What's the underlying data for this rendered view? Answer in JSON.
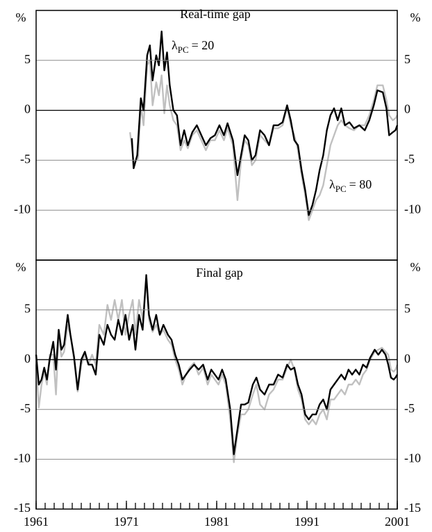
{
  "chart_data": [
    {
      "type": "line",
      "title": "Real-time gap",
      "y_unit": "%",
      "annotations": [
        {
          "symbol": "λ",
          "subscript": "PC",
          "text": "= 20"
        },
        {
          "symbol": "λ",
          "subscript": "PC",
          "text": "= 80"
        }
      ],
      "xlim": [
        1961,
        2001
      ],
      "ylim": [
        -15,
        10
      ],
      "yticks": [
        5,
        0,
        -5,
        -10
      ],
      "grid": true,
      "series": [
        {
          "color": "#000000",
          "x": [
            1971.6,
            1971.8,
            1972.2,
            1972.6,
            1972.9,
            1973.3,
            1973.6,
            1973.9,
            1974.3,
            1974.6,
            1974.9,
            1975.2,
            1975.5,
            1975.8,
            1976.2,
            1976.6,
            1977.0,
            1977.4,
            1977.8,
            1978.3,
            1978.8,
            1979.3,
            1979.8,
            1980.3,
            1980.8,
            1981.3,
            1981.8,
            1982.2,
            1982.8,
            1983.3,
            1983.7,
            1984.1,
            1984.5,
            1984.9,
            1985.3,
            1985.8,
            1986.3,
            1986.8,
            1987.3,
            1987.8,
            1988.3,
            1988.8,
            1989.2,
            1989.6,
            1990.0,
            1990.4,
            1990.8,
            1991.2,
            1991.6,
            1992.0,
            1992.4,
            1992.8,
            1993.2,
            1993.6,
            1994.0,
            1994.4,
            1994.8,
            1995.2,
            1995.7,
            1996.2,
            1996.8,
            1997.4,
            1997.9,
            1998.4,
            1998.8,
            1999.4,
            1999.8,
            2000.1,
            2000.5,
            2000.8,
            2001.0
          ],
          "values": [
            -2.8,
            -5.8,
            -4.5,
            1.2,
            0,
            5.5,
            6.5,
            3,
            5.5,
            4.5,
            7.9,
            4,
            5.8,
            2.5,
            0,
            -0.5,
            -3.5,
            -2.0,
            -3.5,
            -2.2,
            -1.5,
            -2.5,
            -3.5,
            -2.8,
            -2.5,
            -1.5,
            -2.5,
            -1.3,
            -3,
            -6.5,
            -4.5,
            -2.5,
            -3.0,
            -5,
            -4.5,
            -2,
            -2.5,
            -3.5,
            -1.5,
            -1.5,
            -1.2,
            0.5,
            -1.0,
            -3.0,
            -3.5,
            -6,
            -8,
            -10.5,
            -9.5,
            -8,
            -6,
            -4.5,
            -2,
            -0.5,
            0.2,
            -1.0,
            0.2,
            -1.5,
            -1.2,
            -1.8,
            -1.5,
            -2,
            -1.0,
            0.5,
            2.0,
            1.8,
            0.2,
            -2.5,
            -2.2,
            -2.0,
            -1.5
          ]
        },
        {
          "color": "#c0c0c0",
          "x": [
            1971.4,
            1971.8,
            1972.3,
            1972.6,
            1972.9,
            1973.3,
            1973.6,
            1973.9,
            1974.3,
            1974.6,
            1974.9,
            1975.2,
            1975.5,
            1975.8,
            1976.2,
            1976.6,
            1977.0,
            1977.4,
            1977.8,
            1978.3,
            1978.8,
            1979.3,
            1979.8,
            1980.3,
            1980.8,
            1981.3,
            1981.8,
            1982.2,
            1982.8,
            1983.3,
            1983.7,
            1984.1,
            1984.5,
            1984.9,
            1985.3,
            1985.8,
            1986.3,
            1986.8,
            1987.3,
            1987.8,
            1988.3,
            1988.8,
            1989.2,
            1989.6,
            1990.0,
            1990.4,
            1990.8,
            1991.2,
            1991.6,
            1992.0,
            1992.4,
            1992.8,
            1993.2,
            1993.6,
            1994.0,
            1994.4,
            1994.8,
            1995.2,
            1995.7,
            1996.2,
            1996.8,
            1997.4,
            1997.9,
            1998.4,
            1998.8,
            1999.4,
            1999.8,
            2000.1,
            2000.5,
            2000.8,
            2001.0
          ],
          "values": [
            -2.2,
            -5.2,
            -4.8,
            0.5,
            -1.5,
            4.5,
            5.0,
            0.5,
            2.8,
            1.5,
            3.5,
            -0.3,
            2.5,
            0.5,
            -1.0,
            -1.5,
            -4,
            -3,
            -3.8,
            -2.5,
            -2.0,
            -3,
            -4,
            -3,
            -3,
            -2.0,
            -3,
            -1.8,
            -3.5,
            -9,
            -5,
            -3,
            -3.5,
            -5.5,
            -5.0,
            -2.5,
            -3,
            -3.5,
            -1.8,
            -1.8,
            -1.5,
            0.3,
            -1.5,
            -2.5,
            -4,
            -6.5,
            -8.5,
            -11,
            -10,
            -9,
            -8.5,
            -7.5,
            -5.5,
            -3.5,
            -2.5,
            -1.5,
            -1.0,
            -1.5,
            -1.8,
            -2.0,
            -1.5,
            -1.5,
            -0.5,
            1.0,
            2.5,
            2.5,
            1.0,
            -0.5,
            -1.0,
            -0.8,
            -0.5
          ]
        }
      ]
    },
    {
      "type": "line",
      "title": "Final gap",
      "y_unit": "%",
      "xlim": [
        1961,
        2001
      ],
      "xticks": [
        1961,
        1971,
        1981,
        1991,
        2001
      ],
      "minor_xtick_step": 1,
      "ylim": [
        -15,
        10
      ],
      "yticks": [
        5,
        0,
        -5,
        -10,
        -15
      ],
      "grid": true,
      "series": [
        {
          "color": "#000000",
          "x": [
            1961,
            1961.3,
            1961.6,
            1961.9,
            1962.2,
            1962.5,
            1962.9,
            1963.2,
            1963.5,
            1963.8,
            1964.1,
            1964.5,
            1964.8,
            1965.2,
            1965.6,
            1966.0,
            1966.4,
            1966.8,
            1967.2,
            1967.6,
            1968.0,
            1968.5,
            1968.9,
            1969.3,
            1969.7,
            1970.1,
            1970.5,
            1970.9,
            1971.3,
            1971.7,
            1972.0,
            1972.4,
            1972.8,
            1973.2,
            1973.5,
            1973.9,
            1974.3,
            1974.7,
            1975.1,
            1975.6,
            1976.0,
            1976.4,
            1976.8,
            1977.2,
            1977.6,
            1978.0,
            1978.5,
            1979.0,
            1979.5,
            1980.0,
            1980.4,
            1980.8,
            1981.2,
            1981.6,
            1982.0,
            1982.5,
            1982.9,
            1983.3,
            1983.7,
            1984.1,
            1984.5,
            1985.0,
            1985.4,
            1985.8,
            1986.3,
            1986.8,
            1987.3,
            1987.8,
            1988.3,
            1988.8,
            1989.2,
            1989.6,
            1990.0,
            1990.4,
            1990.8,
            1991.2,
            1991.6,
            1992.0,
            1992.4,
            1992.8,
            1993.2,
            1993.6,
            1994.0,
            1994.4,
            1994.8,
            1995.2,
            1995.6,
            1996.0,
            1996.4,
            1996.8,
            1997.2,
            1997.6,
            1998.0,
            1998.5,
            1998.9,
            1999.3,
            1999.7,
            2000.0,
            2000.3,
            2000.6,
            2000.8,
            2001.0
          ],
          "values": [
            0.5,
            -2.5,
            -2,
            -0.8,
            -2,
            0,
            1.8,
            -1,
            3,
            1,
            1.5,
            4.5,
            2.5,
            0.3,
            -3.0,
            0,
            0.8,
            -0.5,
            -0.5,
            -1.5,
            2.5,
            1.5,
            3.5,
            2.5,
            2.0,
            4,
            2.5,
            4.5,
            2.0,
            3.5,
            1,
            4.5,
            3,
            8.5,
            4.5,
            3.0,
            4.5,
            2.5,
            3.5,
            2.5,
            2.0,
            0.5,
            -0.5,
            -2.0,
            -1.5,
            -1.0,
            -0.5,
            -1.0,
            -0.5,
            -2,
            -1.0,
            -1.5,
            -2,
            -1.0,
            -2.0,
            -5,
            -9.5,
            -7.0,
            -4.5,
            -4.5,
            -4.3,
            -2.5,
            -1.8,
            -3.0,
            -3.5,
            -2.5,
            -2.5,
            -1.5,
            -1.8,
            -0.5,
            -1.0,
            -0.8,
            -2.5,
            -3.5,
            -5.5,
            -6.0,
            -5.5,
            -5.5,
            -4.5,
            -4,
            -5,
            -3,
            -2.5,
            -2.0,
            -1.5,
            -2,
            -1.0,
            -1.5,
            -1.0,
            -1.5,
            -0.5,
            -0.8,
            0.2,
            1.0,
            0.5,
            1.0,
            0.5,
            -0.5,
            -1.8,
            -2.0,
            -1.8,
            -1.5
          ]
        },
        {
          "color": "#c0c0c0",
          "x": [
            1961,
            1961.3,
            1961.6,
            1961.9,
            1962.2,
            1962.5,
            1962.9,
            1963.2,
            1963.5,
            1963.8,
            1964.1,
            1964.5,
            1964.8,
            1965.2,
            1965.6,
            1966.0,
            1966.4,
            1966.8,
            1967.2,
            1967.6,
            1968.0,
            1968.5,
            1968.9,
            1969.3,
            1969.7,
            1970.1,
            1970.5,
            1970.9,
            1971.3,
            1971.7,
            1972.0,
            1972.4,
            1972.8,
            1973.2,
            1973.5,
            1973.9,
            1974.3,
            1974.7,
            1975.1,
            1975.6,
            1976.0,
            1976.4,
            1976.8,
            1977.2,
            1977.6,
            1978.0,
            1978.5,
            1979.0,
            1979.5,
            1980.0,
            1980.4,
            1980.8,
            1981.2,
            1981.6,
            1982.0,
            1982.5,
            1982.9,
            1983.3,
            1983.7,
            1984.1,
            1984.5,
            1985.0,
            1985.4,
            1985.8,
            1986.3,
            1986.8,
            1987.3,
            1987.8,
            1988.3,
            1988.8,
            1989.2,
            1989.6,
            1990.0,
            1990.4,
            1990.8,
            1991.2,
            1991.6,
            1992.0,
            1992.4,
            1992.8,
            1993.2,
            1993.6,
            1994.0,
            1994.4,
            1994.8,
            1995.2,
            1995.6,
            1996.0,
            1996.4,
            1996.8,
            1997.2,
            1997.6,
            1998.0,
            1998.5,
            1998.9,
            1999.3,
            1999.7,
            2000.0,
            2000.3,
            2000.6,
            2000.8,
            2001.0
          ],
          "values": [
            -0.5,
            -4.8,
            -2.5,
            -1.2,
            -2.5,
            0.5,
            0.5,
            -3.5,
            2.5,
            0.3,
            0.8,
            3.5,
            2.5,
            0,
            -3.2,
            -0.5,
            0.5,
            -0.5,
            0.5,
            -0.5,
            3.5,
            2.5,
            5.5,
            4,
            6,
            4,
            6,
            2.5,
            4.5,
            6,
            2.5,
            6,
            4,
            8,
            4,
            2.8,
            3.5,
            2.5,
            3,
            2,
            1.5,
            0,
            -1,
            -2.5,
            -1.5,
            -0.8,
            -0.3,
            -1.5,
            -0.8,
            -2.5,
            -1.5,
            -2,
            -2.5,
            -1.5,
            -2.5,
            -6,
            -10.3,
            -7.5,
            -5.5,
            -5.5,
            -5.0,
            -3.5,
            -2.5,
            -4.5,
            -5,
            -3.5,
            -3,
            -2.0,
            -2.0,
            -0.8,
            0,
            -1.0,
            -3,
            -4,
            -6,
            -6.5,
            -6.0,
            -6.5,
            -5.5,
            -5,
            -6.0,
            -4,
            -4,
            -3.5,
            -3.0,
            -3.5,
            -2.5,
            -2.5,
            -2.0,
            -2.5,
            -1.5,
            -1.0,
            0,
            0.8,
            1.0,
            1.2,
            0.8,
            0.5,
            -1.0,
            -1.2,
            -1.0,
            -0.5
          ]
        }
      ]
    }
  ]
}
